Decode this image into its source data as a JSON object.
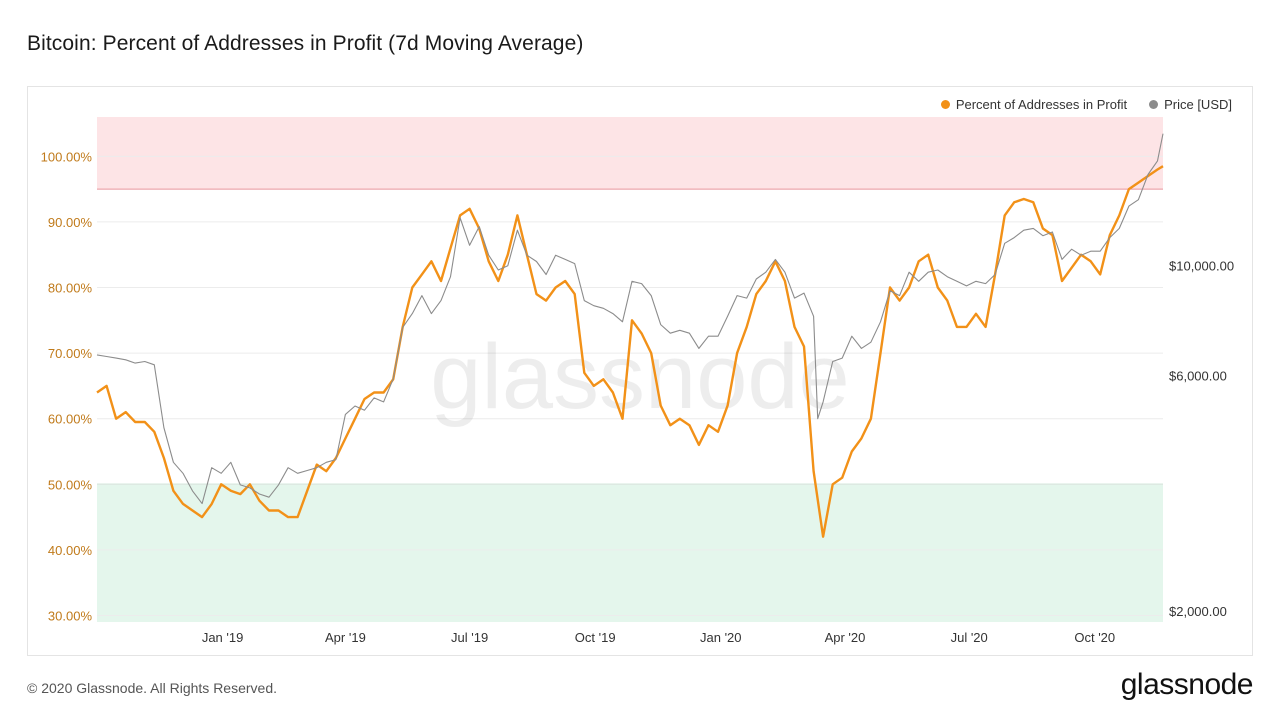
{
  "title": "Bitcoin: Percent of Addresses in Profit (7d Moving Average)",
  "footer": "© 2020 Glassnode. All Rights Reserved.",
  "brand": "glassnode",
  "watermark": "glassnode",
  "legend": [
    {
      "label": "Percent of Addresses in Profit",
      "color": "#f29118"
    },
    {
      "label": "Price [USD]",
      "color": "#8c8c8c"
    }
  ],
  "colors": {
    "profit_line": "#f29118",
    "price_line": "#8c8c8c",
    "upper_band": "#fde4e6",
    "upper_band_line": "#e8939c",
    "lower_band": "#e4f6ec",
    "lower_band_line": "#7dc9a1",
    "left_axis": "#c07a1a"
  },
  "chart_data": {
    "type": "line",
    "x_ticks": [
      "Jan '19",
      "Apr '19",
      "Jul '19",
      "Oct '19",
      "Jan '20",
      "Apr '20",
      "Jul '20",
      "Oct '20"
    ],
    "y_left": {
      "ticks": [
        "30.00%",
        "40.00%",
        "50.00%",
        "60.00%",
        "70.00%",
        "80.00%",
        "90.00%",
        "100.00%"
      ],
      "tick_values": [
        30,
        40,
        50,
        60,
        70,
        80,
        90,
        100
      ],
      "range": [
        29,
        106
      ]
    },
    "y_right": {
      "ticks": [
        "$2,000.00",
        "$6,000.00",
        "$10,000.00"
      ],
      "tick_values": [
        2000,
        6000,
        10000
      ],
      "scale": "log",
      "range": [
        1900,
        20000
      ]
    },
    "bands": [
      {
        "name": "upper",
        "from": 95,
        "to": 106
      },
      {
        "name": "lower",
        "from": 29,
        "to": 50
      }
    ],
    "series": [
      {
        "name": "Percent of Addresses in Profit",
        "axis": "left",
        "points": [
          [
            "2018-10-01",
            64
          ],
          [
            "2018-10-08",
            65
          ],
          [
            "2018-10-15",
            60
          ],
          [
            "2018-10-22",
            61
          ],
          [
            "2018-10-29",
            59.5
          ],
          [
            "2018-11-05",
            59.5
          ],
          [
            "2018-11-12",
            58
          ],
          [
            "2018-11-19",
            54
          ],
          [
            "2018-11-26",
            49
          ],
          [
            "2018-12-03",
            47
          ],
          [
            "2018-12-10",
            46
          ],
          [
            "2018-12-17",
            45
          ],
          [
            "2018-12-24",
            47
          ],
          [
            "2018-12-31",
            50
          ],
          [
            "2019-01-07",
            49
          ],
          [
            "2019-01-14",
            48.5
          ],
          [
            "2019-01-21",
            50
          ],
          [
            "2019-01-28",
            47.5
          ],
          [
            "2019-02-04",
            46
          ],
          [
            "2019-02-11",
            46
          ],
          [
            "2019-02-18",
            45
          ],
          [
            "2019-02-25",
            45
          ],
          [
            "2019-03-04",
            49
          ],
          [
            "2019-03-11",
            53
          ],
          [
            "2019-03-18",
            52
          ],
          [
            "2019-03-25",
            54
          ],
          [
            "2019-04-01",
            57
          ],
          [
            "2019-04-08",
            60
          ],
          [
            "2019-04-15",
            63
          ],
          [
            "2019-04-22",
            64
          ],
          [
            "2019-04-29",
            64
          ],
          [
            "2019-05-06",
            66
          ],
          [
            "2019-05-13",
            74
          ],
          [
            "2019-05-20",
            80
          ],
          [
            "2019-05-27",
            82
          ],
          [
            "2019-06-03",
            84
          ],
          [
            "2019-06-10",
            81
          ],
          [
            "2019-06-17",
            86
          ],
          [
            "2019-06-24",
            91
          ],
          [
            "2019-07-01",
            92
          ],
          [
            "2019-07-08",
            89
          ],
          [
            "2019-07-15",
            84
          ],
          [
            "2019-07-22",
            81
          ],
          [
            "2019-07-29",
            85
          ],
          [
            "2019-08-05",
            91
          ],
          [
            "2019-08-12",
            85
          ],
          [
            "2019-08-19",
            79
          ],
          [
            "2019-08-26",
            78
          ],
          [
            "2019-09-02",
            80
          ],
          [
            "2019-09-09",
            81
          ],
          [
            "2019-09-16",
            79
          ],
          [
            "2019-09-23",
            67
          ],
          [
            "2019-09-30",
            65
          ],
          [
            "2019-10-07",
            66
          ],
          [
            "2019-10-14",
            64
          ],
          [
            "2019-10-21",
            60
          ],
          [
            "2019-10-28",
            75
          ],
          [
            "2019-11-04",
            73
          ],
          [
            "2019-11-11",
            70
          ],
          [
            "2019-11-18",
            62
          ],
          [
            "2019-11-25",
            59
          ],
          [
            "2019-12-02",
            60
          ],
          [
            "2019-12-09",
            59
          ],
          [
            "2019-12-16",
            56
          ],
          [
            "2019-12-23",
            59
          ],
          [
            "2019-12-30",
            58
          ],
          [
            "2020-01-06",
            62
          ],
          [
            "2020-01-13",
            70
          ],
          [
            "2020-01-20",
            74
          ],
          [
            "2020-01-27",
            79
          ],
          [
            "2020-02-03",
            81
          ],
          [
            "2020-02-10",
            84
          ],
          [
            "2020-02-17",
            81
          ],
          [
            "2020-02-24",
            74
          ],
          [
            "2020-03-02",
            71
          ],
          [
            "2020-03-09",
            52
          ],
          [
            "2020-03-16",
            42
          ],
          [
            "2020-03-23",
            50
          ],
          [
            "2020-03-30",
            51
          ],
          [
            "2020-04-06",
            55
          ],
          [
            "2020-04-13",
            57
          ],
          [
            "2020-04-20",
            60
          ],
          [
            "2020-04-27",
            70
          ],
          [
            "2020-05-04",
            80
          ],
          [
            "2020-05-11",
            78
          ],
          [
            "2020-05-18",
            80
          ],
          [
            "2020-05-25",
            84
          ],
          [
            "2020-06-01",
            85
          ],
          [
            "2020-06-08",
            80
          ],
          [
            "2020-06-15",
            78
          ],
          [
            "2020-06-22",
            74
          ],
          [
            "2020-06-29",
            74
          ],
          [
            "2020-07-06",
            76
          ],
          [
            "2020-07-13",
            74
          ],
          [
            "2020-07-20",
            82
          ],
          [
            "2020-07-27",
            91
          ],
          [
            "2020-08-03",
            93
          ],
          [
            "2020-08-10",
            93.5
          ],
          [
            "2020-08-17",
            93
          ],
          [
            "2020-08-24",
            89
          ],
          [
            "2020-08-31",
            88
          ],
          [
            "2020-09-07",
            81
          ],
          [
            "2020-09-14",
            83
          ],
          [
            "2020-09-21",
            85
          ],
          [
            "2020-09-28",
            84
          ],
          [
            "2020-10-05",
            82
          ],
          [
            "2020-10-12",
            88
          ],
          [
            "2020-10-19",
            91
          ],
          [
            "2020-10-26",
            95
          ],
          [
            "2020-11-02",
            96
          ],
          [
            "2020-11-09",
            97
          ],
          [
            "2020-11-16",
            98
          ],
          [
            "2020-11-20",
            98.5
          ]
        ]
      },
      {
        "name": "Price [USD]",
        "axis": "right",
        "points": [
          [
            "2018-10-01",
            6600
          ],
          [
            "2018-10-08",
            6550
          ],
          [
            "2018-10-15",
            6500
          ],
          [
            "2018-10-22",
            6450
          ],
          [
            "2018-10-29",
            6350
          ],
          [
            "2018-11-05",
            6400
          ],
          [
            "2018-11-12",
            6300
          ],
          [
            "2018-11-19",
            4700
          ],
          [
            "2018-11-26",
            4000
          ],
          [
            "2018-12-03",
            3800
          ],
          [
            "2018-12-10",
            3500
          ],
          [
            "2018-12-17",
            3300
          ],
          [
            "2018-12-24",
            3900
          ],
          [
            "2018-12-31",
            3800
          ],
          [
            "2019-01-07",
            4000
          ],
          [
            "2019-01-14",
            3600
          ],
          [
            "2019-01-21",
            3550
          ],
          [
            "2019-01-28",
            3450
          ],
          [
            "2019-02-04",
            3400
          ],
          [
            "2019-02-11",
            3600
          ],
          [
            "2019-02-18",
            3900
          ],
          [
            "2019-02-25",
            3800
          ],
          [
            "2019-03-04",
            3850
          ],
          [
            "2019-03-11",
            3900
          ],
          [
            "2019-03-18",
            4000
          ],
          [
            "2019-03-25",
            4050
          ],
          [
            "2019-04-01",
            5000
          ],
          [
            "2019-04-08",
            5200
          ],
          [
            "2019-04-15",
            5100
          ],
          [
            "2019-04-22",
            5400
          ],
          [
            "2019-04-29",
            5300
          ],
          [
            "2019-05-06",
            5900
          ],
          [
            "2019-05-13",
            7500
          ],
          [
            "2019-05-20",
            8000
          ],
          [
            "2019-05-27",
            8700
          ],
          [
            "2019-06-03",
            8000
          ],
          [
            "2019-06-10",
            8500
          ],
          [
            "2019-06-17",
            9500
          ],
          [
            "2019-06-24",
            12500
          ],
          [
            "2019-07-01",
            11000
          ],
          [
            "2019-07-08",
            12000
          ],
          [
            "2019-07-15",
            10500
          ],
          [
            "2019-07-22",
            9800
          ],
          [
            "2019-07-29",
            10000
          ],
          [
            "2019-08-05",
            11800
          ],
          [
            "2019-08-12",
            10500
          ],
          [
            "2019-08-19",
            10200
          ],
          [
            "2019-08-26",
            9600
          ],
          [
            "2019-09-02",
            10500
          ],
          [
            "2019-09-09",
            10300
          ],
          [
            "2019-09-16",
            10100
          ],
          [
            "2019-09-23",
            8500
          ],
          [
            "2019-09-30",
            8300
          ],
          [
            "2019-10-07",
            8200
          ],
          [
            "2019-10-14",
            8000
          ],
          [
            "2019-10-21",
            7700
          ],
          [
            "2019-10-28",
            9300
          ],
          [
            "2019-11-04",
            9200
          ],
          [
            "2019-11-11",
            8700
          ],
          [
            "2019-11-18",
            7600
          ],
          [
            "2019-11-25",
            7300
          ],
          [
            "2019-12-02",
            7400
          ],
          [
            "2019-12-09",
            7300
          ],
          [
            "2019-12-16",
            6800
          ],
          [
            "2019-12-23",
            7200
          ],
          [
            "2019-12-30",
            7200
          ],
          [
            "2020-01-06",
            7900
          ],
          [
            "2020-01-13",
            8700
          ],
          [
            "2020-01-20",
            8600
          ],
          [
            "2020-01-27",
            9400
          ],
          [
            "2020-02-03",
            9700
          ],
          [
            "2020-02-10",
            10300
          ],
          [
            "2020-02-17",
            9700
          ],
          [
            "2020-02-24",
            8600
          ],
          [
            "2020-03-02",
            8800
          ],
          [
            "2020-03-09",
            7900
          ],
          [
            "2020-03-12",
            4900
          ],
          [
            "2020-03-16",
            5300
          ],
          [
            "2020-03-23",
            6400
          ],
          [
            "2020-03-30",
            6500
          ],
          [
            "2020-04-06",
            7200
          ],
          [
            "2020-04-13",
            6800
          ],
          [
            "2020-04-20",
            7000
          ],
          [
            "2020-04-27",
            7700
          ],
          [
            "2020-05-04",
            8900
          ],
          [
            "2020-05-11",
            8700
          ],
          [
            "2020-05-18",
            9700
          ],
          [
            "2020-05-25",
            9300
          ],
          [
            "2020-06-01",
            9700
          ],
          [
            "2020-06-08",
            9800
          ],
          [
            "2020-06-15",
            9500
          ],
          [
            "2020-06-22",
            9300
          ],
          [
            "2020-06-29",
            9100
          ],
          [
            "2020-07-06",
            9300
          ],
          [
            "2020-07-13",
            9200
          ],
          [
            "2020-07-20",
            9600
          ],
          [
            "2020-07-27",
            11100
          ],
          [
            "2020-08-03",
            11400
          ],
          [
            "2020-08-10",
            11800
          ],
          [
            "2020-08-17",
            11900
          ],
          [
            "2020-08-24",
            11500
          ],
          [
            "2020-08-31",
            11700
          ],
          [
            "2020-09-07",
            10300
          ],
          [
            "2020-09-14",
            10800
          ],
          [
            "2020-09-21",
            10500
          ],
          [
            "2020-09-28",
            10700
          ],
          [
            "2020-10-05",
            10700
          ],
          [
            "2020-10-12",
            11400
          ],
          [
            "2020-10-19",
            11900
          ],
          [
            "2020-10-26",
            13200
          ],
          [
            "2020-11-02",
            13600
          ],
          [
            "2020-11-09",
            15300
          ],
          [
            "2020-11-16",
            16300
          ],
          [
            "2020-11-20",
            18500
          ]
        ]
      }
    ]
  }
}
